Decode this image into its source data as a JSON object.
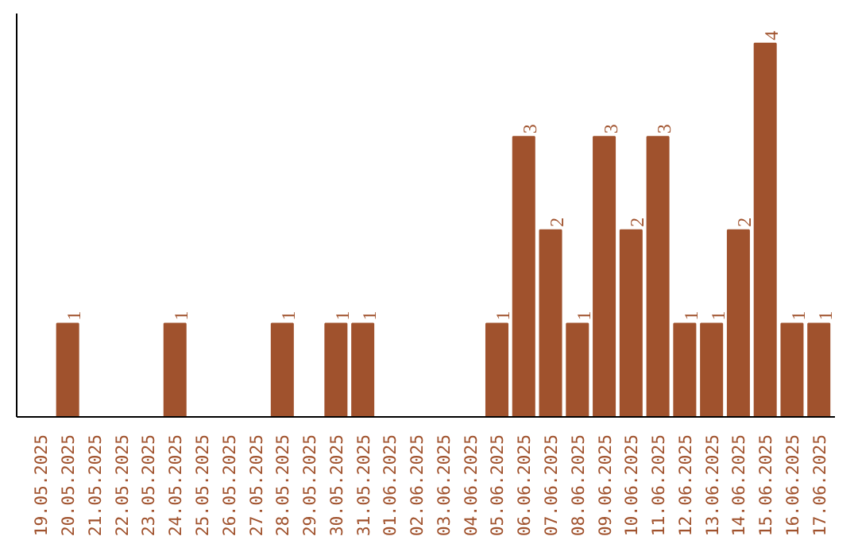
{
  "chart_data": {
    "type": "bar",
    "categories": [
      "19.05.2025",
      "20.05.2025",
      "21.05.2025",
      "22.05.2025",
      "23.05.2025",
      "24.05.2025",
      "25.05.2025",
      "26.05.2025",
      "27.05.2025",
      "28.05.2025",
      "29.05.2025",
      "30.05.2025",
      "31.05.2025",
      "01.06.2025",
      "02.06.2025",
      "03.06.2025",
      "04.06.2025",
      "05.06.2025",
      "06.06.2025",
      "07.06.2025",
      "08.06.2025",
      "09.06.2025",
      "10.06.2025",
      "11.06.2025",
      "12.06.2025",
      "13.06.2025",
      "14.06.2025",
      "15.06.2025",
      "16.06.2025",
      "17.06.2025"
    ],
    "values": [
      0,
      1,
      0,
      0,
      0,
      1,
      0,
      0,
      0,
      1,
      0,
      1,
      1,
      0,
      0,
      0,
      0,
      1,
      3,
      2,
      1,
      3,
      2,
      3,
      1,
      1,
      2,
      4,
      1,
      1
    ],
    "value_labels": [
      null,
      "1",
      null,
      null,
      null,
      "1",
      null,
      null,
      null,
      "1",
      null,
      "1",
      "1",
      null,
      null,
      null,
      null,
      "1",
      "3",
      "2",
      "1",
      "3",
      "2",
      "3",
      "1",
      "1",
      "2",
      "4",
      "1",
      "1"
    ],
    "color": "#a0522d",
    "grid": false,
    "tick_labels": "x"
  }
}
